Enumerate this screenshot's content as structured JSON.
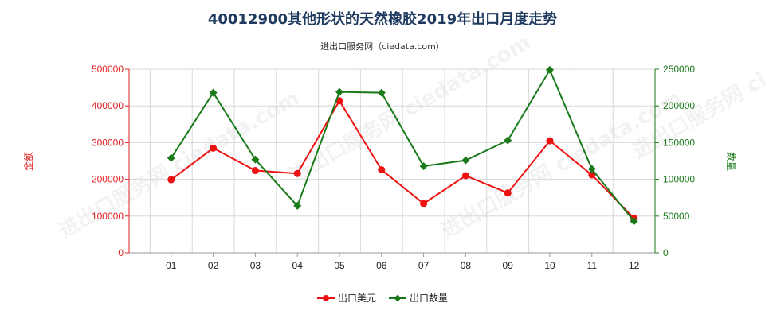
{
  "title": "40012900其他形状的天然橡胶2019年出口月度走势",
  "subtitle": "进出口服务网（ciedata.com）",
  "watermark": "进出口服务网 ciedata.com",
  "chart_data": {
    "type": "line",
    "categories": [
      "01",
      "02",
      "03",
      "04",
      "05",
      "06",
      "07",
      "08",
      "09",
      "10",
      "11",
      "12"
    ],
    "series": [
      {
        "name": "出口美元",
        "axis": "left",
        "color": "#ee1111",
        "values": [
          199000,
          285000,
          224000,
          216000,
          414000,
          226000,
          134000,
          210000,
          163000,
          305000,
          212000,
          94000
        ]
      },
      {
        "name": "出口数量",
        "axis": "right",
        "color": "#1a7a1a",
        "values": [
          129000,
          218000,
          127000,
          64000,
          219000,
          218000,
          118000,
          126000,
          153000,
          249000,
          114000,
          43000
        ]
      }
    ],
    "y_left": {
      "label": "金额",
      "min": 0,
      "max": 500000,
      "ticks": [
        "0",
        "100000",
        "200000",
        "300000",
        "400000",
        "500000"
      ],
      "color": "#e02020"
    },
    "y_right": {
      "label": "数量",
      "min": 0,
      "max": 250000,
      "ticks": [
        "0",
        "50000",
        "100000",
        "150000",
        "200000",
        "250000"
      ],
      "color": "#1a7a1a"
    },
    "grid": true,
    "legend": "bottom-center"
  }
}
